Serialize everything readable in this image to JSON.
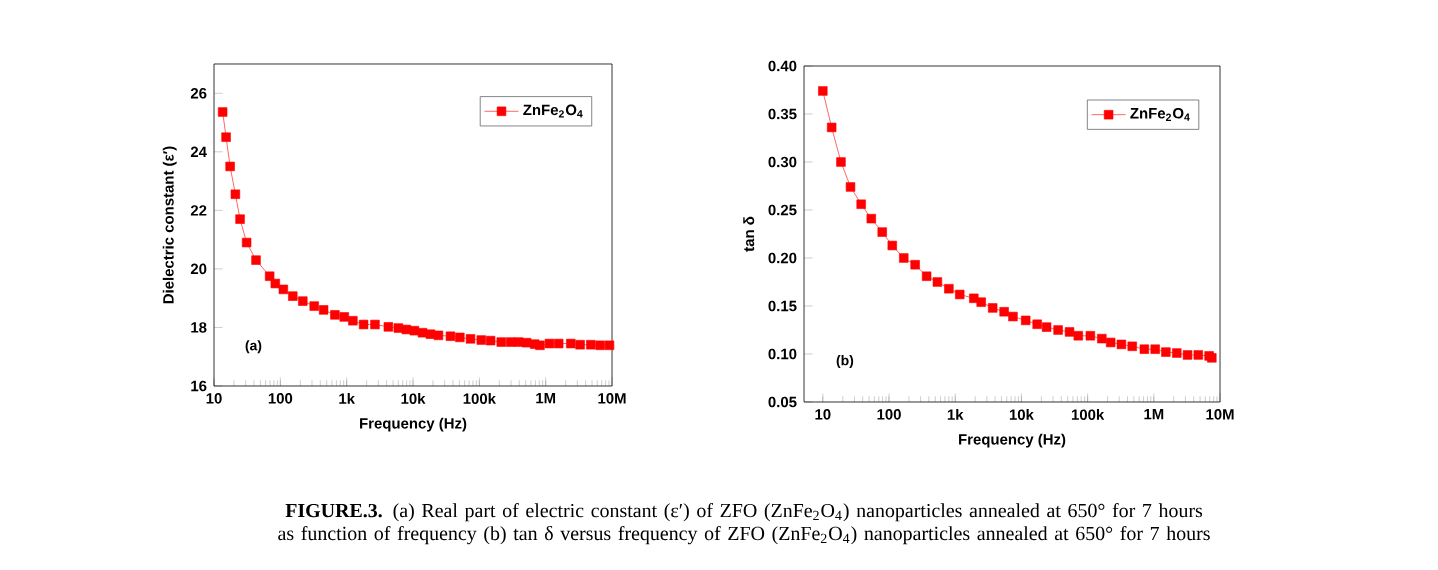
{
  "chart_data": [
    {
      "type": "line",
      "xlabel": "Frequency (Hz)",
      "ylabel": "Dielectric constant (ε′)",
      "log": "x",
      "marker": "square",
      "legend": "top right",
      "grid": false,
      "xlim": [
        10,
        10000000
      ],
      "xticks": [
        {
          "value": 10,
          "label": "10"
        },
        {
          "value": 100,
          "label": "100"
        },
        {
          "value": 1000,
          "label": "1k"
        },
        {
          "value": 10000,
          "label": "10k"
        },
        {
          "value": 100000,
          "label": "100k"
        },
        {
          "value": 1000000,
          "label": "1M"
        },
        {
          "value": 10000000,
          "label": "10M"
        }
      ],
      "ylim": [
        16,
        27
      ],
      "yticks": [
        16,
        18,
        20,
        22,
        24,
        26
      ],
      "annotations": [
        "(a)",
        "**FIGURE.3.** (a) Real part of electric constant (ε′) of ZFO (ZnFe$_{2}$O$_{4}$) nanoparticles annealed at 650° for 7 hours as function of frequency (b) tan δ versus frequency of ZFO (ZnFe$_{2}$O$_{4}$) nanoparticles annealed at 650° for 7 hours"
      ],
      "x": [
        13.5,
        15.2,
        17.5,
        21,
        24.7,
        31,
        43,
        69,
        84,
        111,
        154,
        218,
        324,
        449,
        665,
        920,
        1240,
        1800,
        2670,
        4250,
        6010,
        7940,
        10500,
        13900,
        18300,
        24200,
        36700,
        50800,
        73600,
        107000,
        148000,
        214000,
        296000,
        391000,
        516000,
        682000,
        820000,
        1140000,
        1570000,
        2390000,
        3300000,
        4790000,
        6620000,
        9160000
      ],
      "series": [
        {
          "name": "ZnFe$_{2}$O$_{4}$",
          "color": "#ff0000",
          "values": [
            25.36,
            24.5,
            23.5,
            22.55,
            21.7,
            20.9,
            20.3,
            19.75,
            19.5,
            19.3,
            19.07,
            18.9,
            18.73,
            18.6,
            18.43,
            18.36,
            18.23,
            18.1,
            18.1,
            18.02,
            17.98,
            17.93,
            17.89,
            17.82,
            17.77,
            17.73,
            17.7,
            17.66,
            17.61,
            17.57,
            17.55,
            17.5,
            17.5,
            17.5,
            17.48,
            17.43,
            17.39,
            17.45,
            17.45,
            17.45,
            17.41,
            17.41,
            17.39,
            17.39
          ]
        }
      ]
    },
    {
      "type": "line",
      "xlabel": "Frequency (Hz)",
      "ylabel": "tan δ",
      "log": "x",
      "marker": "square",
      "legend": "top right",
      "grid": false,
      "xlim": [
        5.2,
        10000000
      ],
      "xticks": [
        {
          "value": 10,
          "label": "10"
        },
        {
          "value": 100,
          "label": "100"
        },
        {
          "value": 1000,
          "label": "1k"
        },
        {
          "value": 10000,
          "label": "10k"
        },
        {
          "value": 100000,
          "label": "100k"
        },
        {
          "value": 1000000,
          "label": "1M"
        },
        {
          "value": 10000000,
          "label": "10M"
        }
      ],
      "ylim": [
        0.05,
        0.4
      ],
      "yticks": [
        0.05,
        {
          "value": 0.1,
          "label": "0.10"
        },
        0.15,
        {
          "value": 0.2,
          "label": "0.20"
        },
        0.25,
        {
          "value": 0.3,
          "label": "0.30"
        },
        0.35,
        {
          "value": 0.4,
          "label": "0.40"
        }
      ],
      "annotations": [
        "(b)"
      ],
      "x": [
        10,
        13.6,
        18.8,
        26.2,
        38,
        54,
        79,
        112,
        167,
        248,
        370,
        538,
        802,
        1170,
        1910,
        2470,
        3680,
        5480,
        7450,
        11600,
        17300,
        24000,
        35800,
        53300,
        72300,
        110000,
        164000,
        223000,
        324000,
        472000,
        720000,
        1050000,
        1520000,
        2220000,
        3230000,
        4700000,
        6840000,
        7520000
      ],
      "series": [
        {
          "name": "ZnFe$_{2}$O$_{4}$",
          "color": "#ff0000",
          "values": [
            0.374,
            0.336,
            0.3,
            0.274,
            0.256,
            0.241,
            0.227,
            0.213,
            0.2,
            0.193,
            0.181,
            0.175,
            0.168,
            0.162,
            0.158,
            0.154,
            0.148,
            0.144,
            0.139,
            0.135,
            0.131,
            0.128,
            0.125,
            0.123,
            0.119,
            0.119,
            0.116,
            0.112,
            0.11,
            0.108,
            0.105,
            0.105,
            0.102,
            0.101,
            0.099,
            0.099,
            0.098,
            0.096
          ]
        }
      ]
    }
  ]
}
